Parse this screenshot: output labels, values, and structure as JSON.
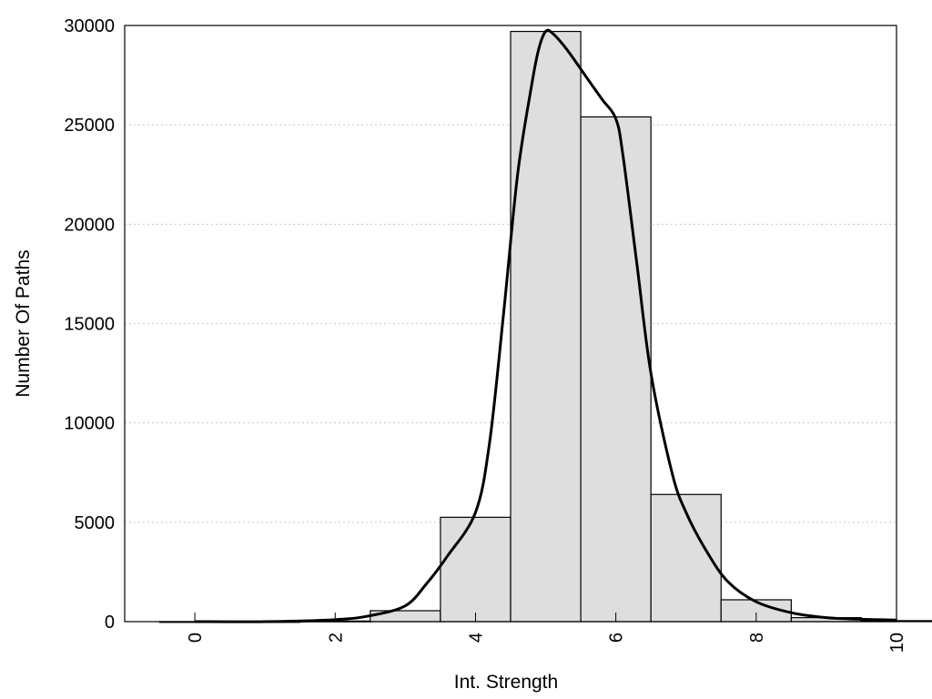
{
  "chart_data": {
    "type": "bar",
    "title": "",
    "xlabel": "Int. Strength",
    "ylabel": "Number Of Paths",
    "xlim": [
      -1,
      10
    ],
    "ylim": [
      0,
      30000
    ],
    "x_ticks": [
      0,
      2,
      4,
      6,
      8,
      10
    ],
    "x_tick_labels": [
      "0",
      "2",
      "4",
      "6",
      "8",
      "10"
    ],
    "y_ticks": [
      0,
      5000,
      10000,
      15000,
      20000,
      25000,
      30000
    ],
    "y_tick_labels": [
      "0",
      "5000",
      "10000",
      "15000",
      "20000",
      "25000",
      "30000"
    ],
    "grid": "horizontal dotted",
    "bar_width": 1,
    "categories": [
      0,
      1,
      2,
      3,
      4,
      5,
      6,
      7,
      8,
      9,
      10
    ],
    "values": [
      0,
      0,
      30,
      550,
      5250,
      29700,
      25400,
      6400,
      1100,
      200,
      50
    ],
    "fit_curve": {
      "type": "line",
      "x": [
        0,
        1,
        2,
        2.5,
        3,
        3.3,
        3.6,
        4,
        4.2,
        4.4,
        4.6,
        4.8,
        4.9,
        5.0,
        5.1,
        5.3,
        5.6,
        5.8,
        6.0,
        6.1,
        6.3,
        6.5,
        6.8,
        7.0,
        7.3,
        7.6,
        8.0,
        8.5,
        9.0,
        9.5,
        10
      ],
      "y": [
        0,
        0,
        100,
        300,
        800,
        1900,
        3300,
        5500,
        9000,
        15500,
        22500,
        27000,
        28800,
        29700,
        29600,
        28800,
        27300,
        26300,
        25300,
        23500,
        18000,
        12500,
        7500,
        5500,
        3500,
        2000,
        1000,
        450,
        200,
        120,
        80
      ]
    }
  }
}
